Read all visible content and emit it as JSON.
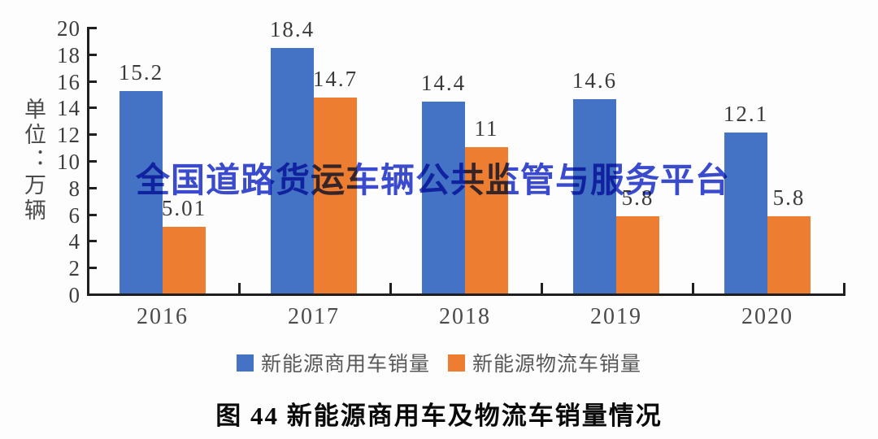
{
  "chart_data": {
    "type": "bar",
    "categories": [
      "2016",
      "2017",
      "2018",
      "2019",
      "2020"
    ],
    "series": [
      {
        "name": "新能源商用车销量",
        "color": "#4472c4",
        "values": [
          15.2,
          18.4,
          14.4,
          14.6,
          12.1
        ],
        "labels": [
          "15.2",
          "18.4",
          "14.4",
          "14.6",
          "12.1"
        ]
      },
      {
        "name": "新能源物流车销量",
        "color": "#ed7d31",
        "values": [
          5.01,
          14.7,
          11,
          5.8,
          5.8
        ],
        "labels": [
          "5.01",
          "14.7",
          "11",
          "5.8",
          "5.8"
        ]
      }
    ],
    "ylim": [
      0,
      20
    ],
    "ytick_step": 2,
    "grid": false,
    "legend_position": "bottom",
    "unit_label": "单位：万辆",
    "title": "图 44  新能源商用车及物流车销量情况"
  },
  "watermark": {
    "text": "全国道路货运车辆公共监管与服务平台"
  },
  "caption": {
    "text": "图 44  新能源商用车及物流车销量情况"
  },
  "colors": {
    "series_blue": "#4472c4",
    "series_orange": "#ed7d31",
    "watermark_blue": "#3a4bd0",
    "axis": "#1f1f1f"
  }
}
